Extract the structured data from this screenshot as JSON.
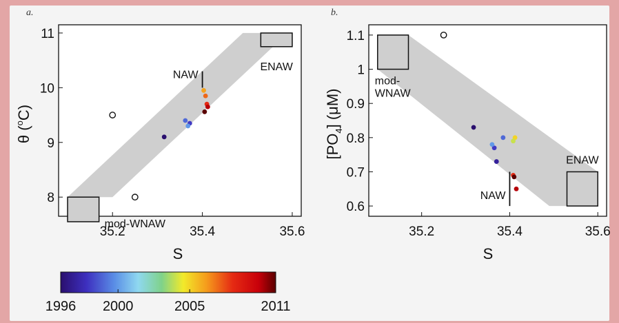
{
  "colors": {
    "background": "#e3a6a6",
    "figure_background": "#f4f4f4",
    "plot_background": "#ffffff",
    "band_fill": "#cfcfcf",
    "water_box_fill": "#cfcfcf"
  },
  "colorbar": {
    "ticks": [
      "1996",
      "2000",
      "2005",
      "2011"
    ],
    "tick_values": [
      1996,
      2000,
      2005,
      2011
    ],
    "range": [
      1996,
      2011
    ],
    "colormap": "jet"
  },
  "chart_data": [
    {
      "type": "scatter",
      "panel_label": "a.",
      "xlabel": "S",
      "ylabel": "θ (°C)",
      "ylabel_parts": {
        "main": "θ (",
        "sup": "o",
        "unit": "C)"
      },
      "xlim": [
        35.08,
        35.62
      ],
      "ylim": [
        7.65,
        11.15
      ],
      "xticks": [
        "35.2",
        "35.4",
        "35.6"
      ],
      "xtick_values": [
        35.2,
        35.4,
        35.6
      ],
      "yticks": [
        "8",
        "9",
        "10",
        "11"
      ],
      "ytick_values": [
        8,
        9,
        10,
        11
      ],
      "band": [
        [
          35.1,
          8.0
        ],
        [
          35.2,
          8.0
        ],
        [
          35.59,
          11.0
        ],
        [
          35.49,
          11.0
        ]
      ],
      "water_masses": [
        {
          "label": "NAW",
          "marker": "line",
          "x": 35.4,
          "y_range": [
            10.0,
            10.3
          ]
        },
        {
          "label": "ENAW",
          "marker": "box",
          "x_range": [
            35.53,
            35.6
          ],
          "y_range": [
            10.75,
            11.0
          ]
        },
        {
          "label": "mod-WNAW",
          "marker": "box",
          "x_range": [
            35.1,
            35.17
          ],
          "y_range": [
            7.55,
            8.0
          ]
        }
      ],
      "open_points": [
        {
          "x": 35.2,
          "y": 9.5
        },
        {
          "x": 35.25,
          "y": 8.0
        }
      ],
      "points": [
        {
          "year": 1996,
          "x": 35.315,
          "y": 9.1
        },
        {
          "year": 1999,
          "x": 35.362,
          "y": 9.4
        },
        {
          "year": 1998,
          "x": 35.372,
          "y": 9.35
        },
        {
          "year": 2000,
          "x": 35.368,
          "y": 9.3
        },
        {
          "year": 2006,
          "x": 35.403,
          "y": 9.95
        },
        {
          "year": 2007,
          "x": 35.407,
          "y": 9.85
        },
        {
          "year": 2008,
          "x": 35.41,
          "y": 9.7
        },
        {
          "year": 2010,
          "x": 35.412,
          "y": 9.65
        },
        {
          "year": 2011,
          "x": 35.405,
          "y": 9.56
        }
      ]
    },
    {
      "type": "scatter",
      "panel_label": "b.",
      "xlabel": "S",
      "ylabel": "[PO4] (μM)",
      "ylabel_parts": {
        "main": "[PO",
        "sub": "4",
        "unit": "] (μM)"
      },
      "xlim": [
        35.08,
        35.62
      ],
      "ylim": [
        0.57,
        1.13
      ],
      "xticks": [
        "35.2",
        "35.4",
        "35.6"
      ],
      "xtick_values": [
        35.2,
        35.4,
        35.6
      ],
      "yticks": [
        "0.6",
        "0.7",
        "0.8",
        "0.9",
        "1",
        "1.1"
      ],
      "ytick_values": [
        0.6,
        0.7,
        0.8,
        0.9,
        1.0,
        1.1
      ],
      "band": [
        [
          35.1,
          1.1
        ],
        [
          35.17,
          1.1
        ],
        [
          35.6,
          0.7
        ],
        [
          35.6,
          0.6
        ],
        [
          35.49,
          0.6
        ],
        [
          35.1,
          1.0
        ]
      ],
      "water_masses": [
        {
          "label": "mod-WNAW",
          "label_lines": [
            "mod-",
            "WNAW"
          ],
          "marker": "box",
          "x_range": [
            35.1,
            35.17
          ],
          "y_range": [
            1.0,
            1.1
          ]
        },
        {
          "label": "ENAW",
          "marker": "box",
          "x_range": [
            35.53,
            35.6
          ],
          "y_range": [
            0.6,
            0.7
          ]
        },
        {
          "label": "NAW",
          "marker": "line",
          "x": 35.4,
          "y_range": [
            0.6,
            0.7
          ]
        }
      ],
      "open_points": [
        {
          "x": 35.25,
          "y": 1.1
        }
      ],
      "points": [
        {
          "year": 1996,
          "x": 35.318,
          "y": 0.83
        },
        {
          "year": 1999,
          "x": 35.385,
          "y": 0.8
        },
        {
          "year": 1998,
          "x": 35.365,
          "y": 0.77
        },
        {
          "year": 2000,
          "x": 35.36,
          "y": 0.78
        },
        {
          "year": 1997,
          "x": 35.37,
          "y": 0.73
        },
        {
          "year": 2005,
          "x": 35.412,
          "y": 0.8
        },
        {
          "year": 2004,
          "x": 35.408,
          "y": 0.79
        },
        {
          "year": 2008,
          "x": 35.408,
          "y": 0.69
        },
        {
          "year": 2011,
          "x": 35.41,
          "y": 0.685
        },
        {
          "year": 2010,
          "x": 35.415,
          "y": 0.65
        }
      ]
    }
  ]
}
